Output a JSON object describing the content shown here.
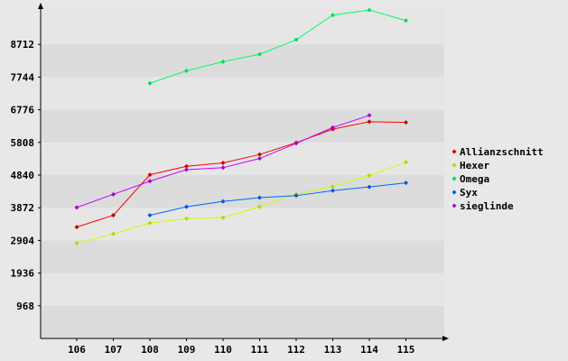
{
  "chart_data": {
    "type": "line",
    "title": "",
    "xlabel": "",
    "ylabel": "",
    "categories": [
      "106",
      "107",
      "108",
      "109",
      "110",
      "111",
      "112",
      "113",
      "114",
      "115"
    ],
    "y_ticks": [
      "968",
      "1936",
      "2904",
      "3872",
      "4840",
      "5808",
      "6776",
      "7744",
      "8712"
    ],
    "ylim": [
      0,
      9760
    ],
    "grid": "horizontal bands",
    "legend_position": "right",
    "series": [
      {
        "name": "Allianzschnitt",
        "color": "#ff0000",
        "marker_color": "#cc0000",
        "values": [
          3300,
          3650,
          4850,
          5100,
          5200,
          5450,
          5800,
          6200,
          6420,
          6400
        ]
      },
      {
        "name": "Hexer",
        "color": "#ccff00",
        "marker_color": "#aadd00",
        "values": [
          2820,
          3100,
          3420,
          3550,
          3580,
          3900,
          4270,
          4500,
          4830,
          5220
        ]
      },
      {
        "name": "Omega",
        "color": "#00ff66",
        "marker_color": "#00dd55",
        "values": [
          null,
          null,
          7560,
          7930,
          8200,
          8420,
          8850,
          9580,
          9730,
          9420
        ]
      },
      {
        "name": "Syx",
        "color": "#0066ff",
        "marker_color": "#0055dd",
        "values": [
          null,
          null,
          3650,
          3900,
          4060,
          4170,
          4230,
          4380,
          4490,
          4610
        ]
      },
      {
        "name": "sieglinde",
        "color": "#cc00ff",
        "marker_color": "#aa00dd",
        "values": [
          3880,
          4270,
          4660,
          5000,
          5060,
          5330,
          5780,
          6250,
          6610,
          null
        ]
      }
    ]
  },
  "colors": {
    "background": "#e8e8e8",
    "band_dark": "#dcdcdc",
    "band_light": "#e6e6e6",
    "axis": "#000000"
  }
}
